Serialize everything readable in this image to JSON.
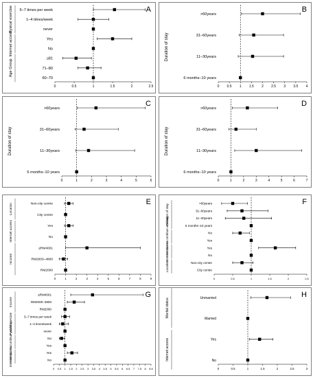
{
  "chart_data": [
    {
      "type": "scatter",
      "panel_label": "A",
      "title": "",
      "xlabel": "",
      "ylabel": "",
      "xlim": [
        0,
        2.5
      ],
      "xticks": [
        "0",
        "0.5",
        "1",
        "1.5",
        "2",
        "2.5"
      ],
      "reference_x": 1,
      "groups": [
        {
          "name": "Pysical exercise",
          "start": 0,
          "end": 2
        },
        {
          "name": "Internet access",
          "start": 3,
          "end": 4
        },
        {
          "name": "Age Group",
          "start": 5,
          "end": 7
        }
      ],
      "rows": [
        {
          "label": "5–7 times per week",
          "or": 1.55,
          "lo": 1.0,
          "hi": 2.35
        },
        {
          "label": "1–4 times/week",
          "or": 1.0,
          "lo": 0.6,
          "hi": 1.4
        },
        {
          "label": "never",
          "or": 1.0,
          "lo": null,
          "hi": null
        },
        {
          "label": "Yes",
          "or": 1.5,
          "lo": 1.1,
          "hi": 2.0
        },
        {
          "label": "No",
          "or": 1.0,
          "lo": null,
          "hi": null
        },
        {
          "label": "≥81",
          "or": 0.55,
          "lo": 0.2,
          "hi": 0.95
        },
        {
          "label": "71–80",
          "or": 0.85,
          "lo": 0.6,
          "hi": 1.2
        },
        {
          "label": "60–70",
          "or": 1.0,
          "lo": null,
          "hi": null
        }
      ]
    },
    {
      "type": "scatter",
      "panel_label": "B",
      "title": "",
      "xlabel": "",
      "ylabel": "Duration of stay",
      "xlim": [
        0,
        4
      ],
      "xticks": [
        "0",
        "0.5",
        "1",
        "1.5",
        "2",
        "2.5",
        "3",
        "3.5",
        "4"
      ],
      "reference_x": 1,
      "groups": [],
      "rows": [
        {
          "label": ">60years",
          "or": 2.0,
          "lo": 1.05,
          "hi": 3.7
        },
        {
          "label": "31–60years",
          "or": 1.6,
          "lo": 0.95,
          "hi": 2.95
        },
        {
          "label": "11–30years",
          "or": 1.55,
          "lo": 0.9,
          "hi": 2.95
        },
        {
          "label": "6 months–10 years",
          "or": 1.0,
          "lo": null,
          "hi": null
        }
      ]
    },
    {
      "type": "scatter",
      "panel_label": "C",
      "title": "",
      "xlabel": "",
      "ylabel": "Duration of stay",
      "xlim": [
        0,
        6
      ],
      "xticks": [
        "0",
        "1",
        "2",
        "3",
        "4",
        "5",
        "6"
      ],
      "reference_x": 1,
      "groups": [],
      "rows": [
        {
          "label": ">60years",
          "or": 2.3,
          "lo": 1.05,
          "hi": 5.6
        },
        {
          "label": "31–60years",
          "or": 1.5,
          "lo": 0.9,
          "hi": 3.8
        },
        {
          "label": "11–30years",
          "or": 1.8,
          "lo": 0.95,
          "hi": 4.9
        },
        {
          "label": "6 months–10 years",
          "or": 1.0,
          "lo": null,
          "hi": null
        }
      ]
    },
    {
      "type": "scatter",
      "panel_label": "D",
      "title": "",
      "xlabel": "",
      "ylabel": "Duration of stay",
      "xlim": [
        0,
        7
      ],
      "xticks": [
        "0",
        "1",
        "2",
        "3",
        "4",
        "5",
        "6",
        "7"
      ],
      "reference_x": 1,
      "groups": [],
      "rows": [
        {
          "label": ">60years",
          "or": 2.3,
          "lo": 1.1,
          "hi": 4.7
        },
        {
          "label": "31–60years",
          "or": 1.4,
          "lo": 0.85,
          "hi": 3.0
        },
        {
          "label": "11–30years",
          "or": 3.0,
          "lo": 1.3,
          "hi": 6.6
        },
        {
          "label": "6 months–10 years",
          "or": 1.0,
          "lo": null,
          "hi": null
        }
      ]
    },
    {
      "type": "scatter",
      "panel_label": "E",
      "title": "",
      "xlabel": "",
      "ylabel": "",
      "xlim": [
        0,
        9
      ],
      "xticks": [
        "0",
        "1",
        "2",
        "3",
        "4",
        "5",
        "6",
        "7",
        "8",
        "9"
      ],
      "reference_x": 1,
      "groups": [
        {
          "name": "Location",
          "start": 0,
          "end": 1
        },
        {
          "name": "Internet access",
          "start": 2,
          "end": 3
        },
        {
          "name": "Income",
          "start": 4,
          "end": 6
        }
      ],
      "rows": [
        {
          "label": "Non-city centre",
          "or": 1.3,
          "lo": 0.9,
          "hi": 1.7
        },
        {
          "label": "City centre",
          "or": 1.0,
          "lo": null,
          "hi": null
        },
        {
          "label": "Yes",
          "or": 1.3,
          "lo": 0.9,
          "hi": 1.7
        },
        {
          "label": "No",
          "or": 1.0,
          "lo": null,
          "hi": null
        },
        {
          "label": "≥RM4001",
          "or": 3.0,
          "lo": 1.0,
          "hi": 8.0
        },
        {
          "label": "RM2000–4800",
          "or": 0.8,
          "lo": 0.4,
          "hi": 1.2
        },
        {
          "label": "RM2000",
          "or": 1.0,
          "lo": null,
          "hi": null
        }
      ]
    },
    {
      "type": "scatter",
      "panel_label": "F",
      "title": "",
      "xlabel": "",
      "ylabel": "",
      "xlim": [
        0,
        2.5
      ],
      "xticks": [
        "0",
        "0.5",
        "1",
        "1.5",
        "2",
        "2.5"
      ],
      "reference_x": 1,
      "groups": [
        {
          "name": "Duration of stay",
          "start": 0,
          "end": 3
        },
        {
          "name": "Intention to continue working",
          "start": 4,
          "end": 5
        },
        {
          "name": "Internet access",
          "start": 6,
          "end": 7
        },
        {
          "name": "Location",
          "start": 8,
          "end": 9
        }
      ],
      "rows": [
        {
          "label": ">60years",
          "or": 0.5,
          "lo": 0.2,
          "hi": 0.9
        },
        {
          "label": "31–60years",
          "or": 0.75,
          "lo": 0.35,
          "hi": 1.45
        },
        {
          "label": "11–30years",
          "or": 0.8,
          "lo": 0.3,
          "hi": 1.55
        },
        {
          "label": "6 months–10 years",
          "or": 1.0,
          "lo": null,
          "hi": null
        },
        {
          "label": "No",
          "or": 0.7,
          "lo": 0.5,
          "hi": 0.95
        },
        {
          "label": "Yes",
          "or": 1.0,
          "lo": null,
          "hi": null
        },
        {
          "label": "Yes",
          "or": 1.65,
          "lo": 1.2,
          "hi": 2.2
        },
        {
          "label": "No",
          "or": 1.0,
          "lo": null,
          "hi": null
        },
        {
          "label": "Non-city centre",
          "or": 0.75,
          "lo": 0.5,
          "hi": 1.05
        },
        {
          "label": "City centre",
          "or": 1.0,
          "lo": null,
          "hi": null
        }
      ]
    },
    {
      "type": "scatter",
      "panel_label": "G",
      "title": "",
      "xlabel": "",
      "ylabel": "",
      "xlim": [
        0,
        8.5
      ],
      "xticks": [
        "0",
        "0.5",
        "1",
        "1.5",
        "2",
        "2.5",
        "3",
        "3.5",
        "4",
        "4.5",
        "5",
        "5.5",
        "6",
        "6.5",
        "7",
        "7.5",
        "8",
        "8.5"
      ],
      "reference_x": 1,
      "groups": [
        {
          "name": "Income",
          "start": 0,
          "end": 2
        },
        {
          "name": "Pysical exercise",
          "start": 3,
          "end": 5
        },
        {
          "name": "Intention to continue working",
          "start": 6,
          "end": 7
        },
        {
          "name": "Internet access",
          "start": 8,
          "end": 9
        }
      ],
      "rows": [
        {
          "label": "≥RM4001",
          "or": 3.4,
          "lo": 1.5,
          "hi": 7.8
        },
        {
          "label": "RM2000–4800",
          "or": 1.8,
          "lo": 1.2,
          "hi": 2.7
        },
        {
          "label": "RM2000",
          "or": 1.0,
          "lo": null,
          "hi": null
        },
        {
          "label": "5–7 times per week",
          "or": 1.0,
          "lo": 0.7,
          "hi": 1.4
        },
        {
          "label": "1–4 times/week",
          "or": 0.8,
          "lo": 0.5,
          "hi": 1.3
        },
        {
          "label": "never",
          "or": 1.0,
          "lo": null,
          "hi": null
        },
        {
          "label": "No",
          "or": 0.7,
          "lo": 0.5,
          "hi": 0.95
        },
        {
          "label": "Yes",
          "or": 1.0,
          "lo": null,
          "hi": null
        },
        {
          "label": "Yes",
          "or": 1.6,
          "lo": 1.2,
          "hi": 2.1
        },
        {
          "label": "No",
          "or": 1.0,
          "lo": null,
          "hi": null
        }
      ]
    },
    {
      "type": "scatter",
      "panel_label": "H",
      "title": "",
      "xlabel": "",
      "ylabel": "",
      "xlim": [
        0,
        3
      ],
      "xticks": [
        "0",
        "0.5",
        "1",
        "1.5",
        "2",
        "2.5",
        "3"
      ],
      "reference_x": 1,
      "groups": [
        {
          "name": "Marital status",
          "start": 0,
          "end": 1
        },
        {
          "name": "Internet access",
          "start": 2,
          "end": 3
        }
      ],
      "rows": [
        {
          "label": "Unmarried",
          "or": 1.65,
          "lo": 1.1,
          "hi": 2.45
        },
        {
          "label": "Married",
          "or": 1.0,
          "lo": null,
          "hi": null
        },
        {
          "label": "Yes",
          "or": 1.4,
          "lo": 1.05,
          "hi": 1.85
        },
        {
          "label": "No",
          "or": 1.0,
          "lo": null,
          "hi": null
        }
      ]
    }
  ]
}
